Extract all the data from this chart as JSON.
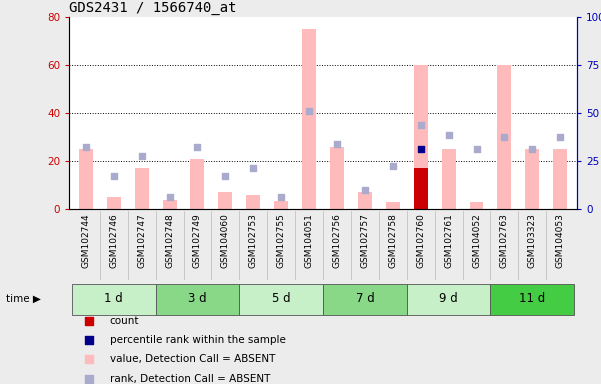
{
  "title": "GDS2431 / 1566740_at",
  "samples": [
    "GSM102744",
    "GSM102746",
    "GSM102747",
    "GSM102748",
    "GSM102749",
    "GSM104060",
    "GSM102753",
    "GSM102755",
    "GSM104051",
    "GSM102756",
    "GSM102757",
    "GSM102758",
    "GSM102760",
    "GSM102761",
    "GSM104052",
    "GSM102763",
    "GSM103323",
    "GSM104053"
  ],
  "groups": [
    {
      "label": "1 d",
      "indices": [
        0,
        1,
        2
      ],
      "color": "#c8f0c8"
    },
    {
      "label": "3 d",
      "indices": [
        3,
        4,
        5
      ],
      "color": "#88d888"
    },
    {
      "label": "5 d",
      "indices": [
        6,
        7,
        8
      ],
      "color": "#c8f0c8"
    },
    {
      "label": "7 d",
      "indices": [
        9,
        10,
        11
      ],
      "color": "#88d888"
    },
    {
      "label": "9 d",
      "indices": [
        12,
        13,
        14
      ],
      "color": "#c8f0c8"
    },
    {
      "label": "11 d",
      "indices": [
        15,
        16,
        17
      ],
      "color": "#44cc44"
    }
  ],
  "pink_bars": [
    25,
    5,
    17,
    4,
    21,
    7,
    6,
    3.5,
    75,
    26,
    7,
    3,
    60,
    25,
    3,
    60,
    25,
    25
  ],
  "blue_squares": [
    26,
    14,
    22,
    5,
    26,
    14,
    17,
    5,
    41,
    27,
    8,
    18,
    35,
    31,
    25,
    30,
    25,
    30
  ],
  "red_bars": [
    0,
    0,
    0,
    0,
    0,
    0,
    0,
    0,
    0,
    0,
    0,
    0,
    17,
    0,
    0,
    0,
    0,
    0
  ],
  "dark_blue_sq": [
    0,
    0,
    0,
    0,
    0,
    0,
    0,
    0,
    0,
    0,
    0,
    0,
    25,
    0,
    0,
    0,
    0,
    0
  ],
  "ylim_left": [
    0,
    80
  ],
  "ylim_right": [
    0,
    100
  ],
  "yticks_left": [
    0,
    20,
    40,
    60,
    80
  ],
  "yticks_right": [
    0,
    25,
    50,
    75,
    100
  ],
  "bg_color": "#ececec",
  "plot_bg": "#ffffff",
  "left_tick_color": "#cc0000",
  "right_tick_color": "#0000bb",
  "pink_bar_color": "#ffbbbb",
  "red_bar_color": "#cc0000",
  "blue_sq_color": "#aaaacc",
  "dark_blue_sq_color": "#00008b",
  "sample_bg_color": "#d0d0d0",
  "legend_items": [
    {
      "color": "#cc0000",
      "label": "count"
    },
    {
      "color": "#00008b",
      "label": "percentile rank within the sample"
    },
    {
      "color": "#ffbbbb",
      "label": "value, Detection Call = ABSENT"
    },
    {
      "color": "#aaaacc",
      "label": "rank, Detection Call = ABSENT"
    }
  ]
}
